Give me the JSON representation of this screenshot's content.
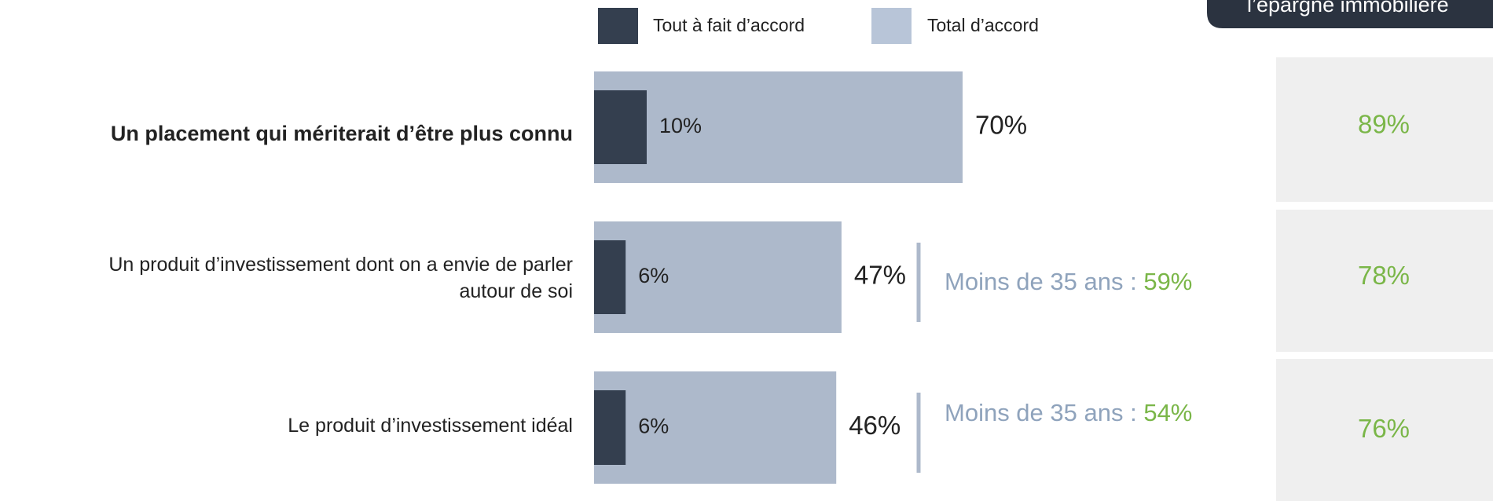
{
  "chart_data": {
    "type": "bar",
    "orientation": "horizontal",
    "categories": [
      "Un placement qui mériterait d’être  plus connu",
      "Un produit d’investissement dont on a envie de parler autour de soi",
      "Le produit d’investissement idéal"
    ],
    "series": [
      {
        "name": "Tout à fait d’accord",
        "color": "#343f4f",
        "values": [
          10,
          6,
          6
        ],
        "value_labels": [
          "10%",
          "6%",
          "6%"
        ]
      },
      {
        "name": "Total d’accord",
        "color": "#adb9cb",
        "values": [
          70,
          47,
          46
        ],
        "value_labels": [
          "70%",
          "47%",
          "46%"
        ]
      }
    ],
    "under_35": {
      "label": "Moins de 35 ans :",
      "values": [
        null,
        59,
        54
      ],
      "value_labels": [
        null,
        "59%",
        "54%"
      ]
    },
    "column": {
      "title": "l’épargne immobilière",
      "values": [
        89,
        78,
        76
      ],
      "value_labels": [
        "89%",
        "78%",
        "76%"
      ]
    }
  }
}
